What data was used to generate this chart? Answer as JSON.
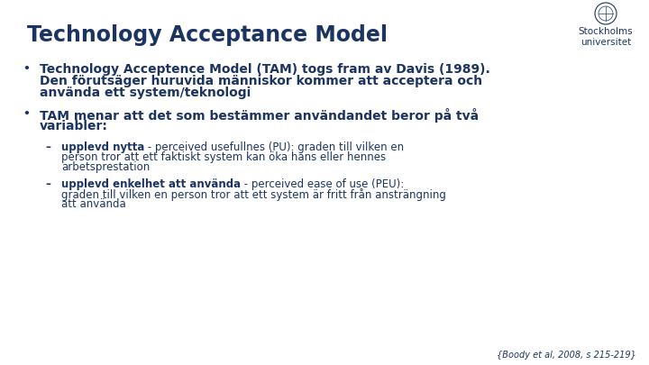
{
  "title": "Technology Acceptance Model",
  "title_color": "#1c3461",
  "title_fontsize": 17,
  "background_color": "#ffffff",
  "text_color": "#1c3461",
  "bullet1_line1": "Technology Acceptence Model (TAM) togs fram av Davis (1989).",
  "bullet1_line2": "Den förutsäger huruvida människor kommer att acceptera och",
  "bullet1_line3": "använda ett system/teknologi",
  "bullet2_line1": "TAM menar att det som bestämmer användandet beror på två",
  "bullet2_line2": "variabler:",
  "sub1_bold": "upplevd nytta",
  "sub1_rest": " - perceived usefullnes (PU): graden till vilken en\nperson tror att ett faktiskt system kan öka hans eller hennes\narbetsprestation",
  "sub2_bold": "upplevd enkelhet att använda",
  "sub2_rest": " - perceived ease of use (PEU):\ngraden till vilken en person tror att ett system är fritt från ansträngning\natt använda",
  "citation": "{Boody et al, 2008, s 215-219}",
  "logo_text_line1": "Stockholms",
  "logo_text_line2": "universitet",
  "body_fontsize": 10,
  "sub_fontsize": 8.5
}
